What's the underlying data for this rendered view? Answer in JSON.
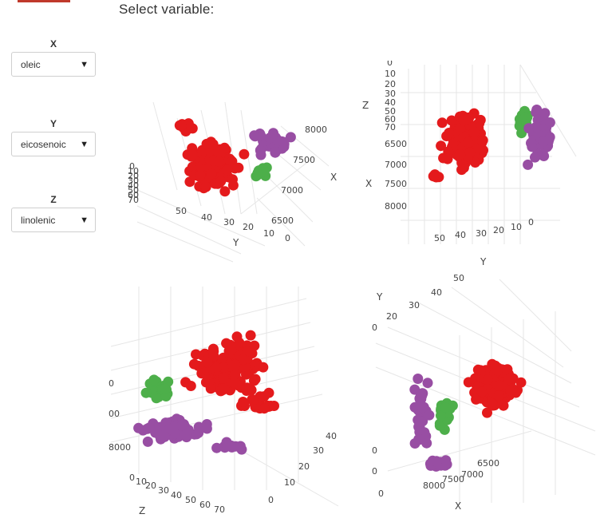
{
  "page": {
    "heading": "Select variable:",
    "accent_color": "#c0392b"
  },
  "controls": [
    {
      "label": "X",
      "value": "oleic"
    },
    {
      "label": "Y",
      "value": "eicosenoic"
    },
    {
      "label": "Z",
      "value": "linolenic"
    }
  ],
  "colors": {
    "red": "#e41a1c",
    "green": "#4daf4a",
    "purple": "#984ea3",
    "axis_text": "#444444",
    "grid": "#e6e6e6"
  },
  "chart_data": [
    {
      "type": "scatter",
      "title": "",
      "axes": {
        "X": {
          "ticks": [
            "6500",
            "7000",
            "7500",
            "8000"
          ],
          "range": [
            6300,
            8400
          ]
        },
        "Y": {
          "ticks": [
            "0",
            "10",
            "20",
            "30",
            "40",
            "50"
          ],
          "range": [
            0,
            60
          ]
        },
        "Z": {
          "ticks": [
            "0",
            "10",
            "20",
            "30",
            "40",
            "50",
            "60",
            "70"
          ],
          "range": [
            0,
            75
          ]
        }
      },
      "series": [
        {
          "color": "red",
          "x_range": [
            7300,
            8100
          ],
          "y_range": [
            20,
            60
          ],
          "z_range": [
            10,
            70
          ]
        },
        {
          "color": "green",
          "x_range": [
            6900,
            7300
          ],
          "y_range": [
            0,
            5
          ],
          "z_range": [
            20,
            60
          ]
        },
        {
          "color": "purple",
          "x_range": [
            6300,
            7000
          ],
          "y_range": [
            0,
            5
          ],
          "z_range": [
            0,
            40
          ]
        }
      ]
    }
  ],
  "panels": [
    {
      "labels": [
        {
          "t": "8000",
          "x": 230,
          "y": 48
        },
        {
          "t": "7500",
          "x": 215,
          "y": 86
        },
        {
          "t": "7000",
          "x": 200,
          "y": 124
        },
        {
          "t": "6500",
          "x": 188,
          "y": 162
        },
        {
          "t": "X",
          "x": 262,
          "y": 108,
          "s": 12
        },
        {
          "t": "0",
          "x": 205,
          "y": 184
        },
        {
          "t": "10",
          "x": 178,
          "y": 178
        },
        {
          "t": "20",
          "x": 152,
          "y": 170
        },
        {
          "t": "30",
          "x": 128,
          "y": 164
        },
        {
          "t": "40",
          "x": 100,
          "y": 158
        },
        {
          "t": "50",
          "x": 68,
          "y": 150
        },
        {
          "t": "Y",
          "x": 140,
          "y": 190,
          "s": 12
        },
        {
          "t": "0",
          "x": 10,
          "y": 94
        },
        {
          "t": "10",
          "x": 8,
          "y": 100
        },
        {
          "t": "20",
          "x": 8,
          "y": 106
        },
        {
          "t": "30",
          "x": 8,
          "y": 112
        },
        {
          "t": "40",
          "x": 8,
          "y": 118
        },
        {
          "t": "50",
          "x": 8,
          "y": 124
        },
        {
          "t": "60",
          "x": 8,
          "y": 130
        },
        {
          "t": "70",
          "x": 8,
          "y": 136
        }
      ]
    },
    {
      "labels": [
        {
          "t": "0",
          "x": 33,
          "y": 6
        },
        {
          "t": "10",
          "x": 30,
          "y": 20
        },
        {
          "t": "20",
          "x": 30,
          "y": 33
        },
        {
          "t": "30",
          "x": 30,
          "y": 45
        },
        {
          "t": "40",
          "x": 30,
          "y": 56
        },
        {
          "t": "50",
          "x": 30,
          "y": 67
        },
        {
          "t": "60",
          "x": 30,
          "y": 77
        },
        {
          "t": "70",
          "x": 30,
          "y": 87
        },
        {
          "t": "Z",
          "x": 2,
          "y": 60,
          "s": 12
        },
        {
          "t": "6500",
          "x": 30,
          "y": 108
        },
        {
          "t": "7000",
          "x": 30,
          "y": 134
        },
        {
          "t": "7500",
          "x": 30,
          "y": 158
        },
        {
          "t": "8000",
          "x": 30,
          "y": 186
        },
        {
          "t": "X",
          "x": 6,
          "y": 158,
          "s": 12
        },
        {
          "t": "50",
          "x": 92,
          "y": 226
        },
        {
          "t": "40",
          "x": 118,
          "y": 222
        },
        {
          "t": "30",
          "x": 144,
          "y": 220
        },
        {
          "t": "20",
          "x": 166,
          "y": 216
        },
        {
          "t": "10",
          "x": 188,
          "y": 212
        },
        {
          "t": "0",
          "x": 210,
          "y": 206
        },
        {
          "t": "Y",
          "x": 150,
          "y": 256,
          "s": 12
        }
      ]
    },
    {
      "labels": [
        {
          "t": "0",
          "x": 2,
          "y": 130
        },
        {
          "t": "00",
          "x": 2,
          "y": 168
        },
        {
          "t": "8000",
          "x": 2,
          "y": 210
        },
        {
          "t": "0",
          "x": 28,
          "y": 248
        },
        {
          "t": "10",
          "x": 36,
          "y": 253
        },
        {
          "t": "20",
          "x": 48,
          "y": 258
        },
        {
          "t": "30",
          "x": 64,
          "y": 264
        },
        {
          "t": "40",
          "x": 80,
          "y": 270
        },
        {
          "t": "50",
          "x": 98,
          "y": 276
        },
        {
          "t": "60",
          "x": 116,
          "y": 282
        },
        {
          "t": "70",
          "x": 134,
          "y": 288
        },
        {
          "t": "Z",
          "x": 40,
          "y": 290,
          "s": 12
        },
        {
          "t": "0",
          "x": 202,
          "y": 276
        },
        {
          "t": "10",
          "x": 222,
          "y": 254
        },
        {
          "t": "20",
          "x": 240,
          "y": 234
        },
        {
          "t": "30",
          "x": 258,
          "y": 214
        },
        {
          "t": "40",
          "x": 274,
          "y": 196
        }
      ]
    },
    {
      "labels": [
        {
          "t": "50",
          "x": 102,
          "y": 12
        },
        {
          "t": "40",
          "x": 74,
          "y": 30
        },
        {
          "t": "30",
          "x": 46,
          "y": 46
        },
        {
          "t": "20",
          "x": 18,
          "y": 60
        },
        {
          "t": "Y",
          "x": 6,
          "y": 36,
          "s": 12
        },
        {
          "t": "0",
          "x": 0,
          "y": 74
        },
        {
          "t": "0",
          "x": 0,
          "y": 228
        },
        {
          "t": "0",
          "x": 0,
          "y": 254
        },
        {
          "t": "0",
          "x": 8,
          "y": 282
        },
        {
          "t": "6500",
          "x": 132,
          "y": 244
        },
        {
          "t": "7000",
          "x": 112,
          "y": 258
        },
        {
          "t": "7500",
          "x": 88,
          "y": 264
        },
        {
          "t": "8000",
          "x": 64,
          "y": 272
        },
        {
          "t": "X",
          "x": 104,
          "y": 298,
          "s": 12
        }
      ]
    }
  ]
}
